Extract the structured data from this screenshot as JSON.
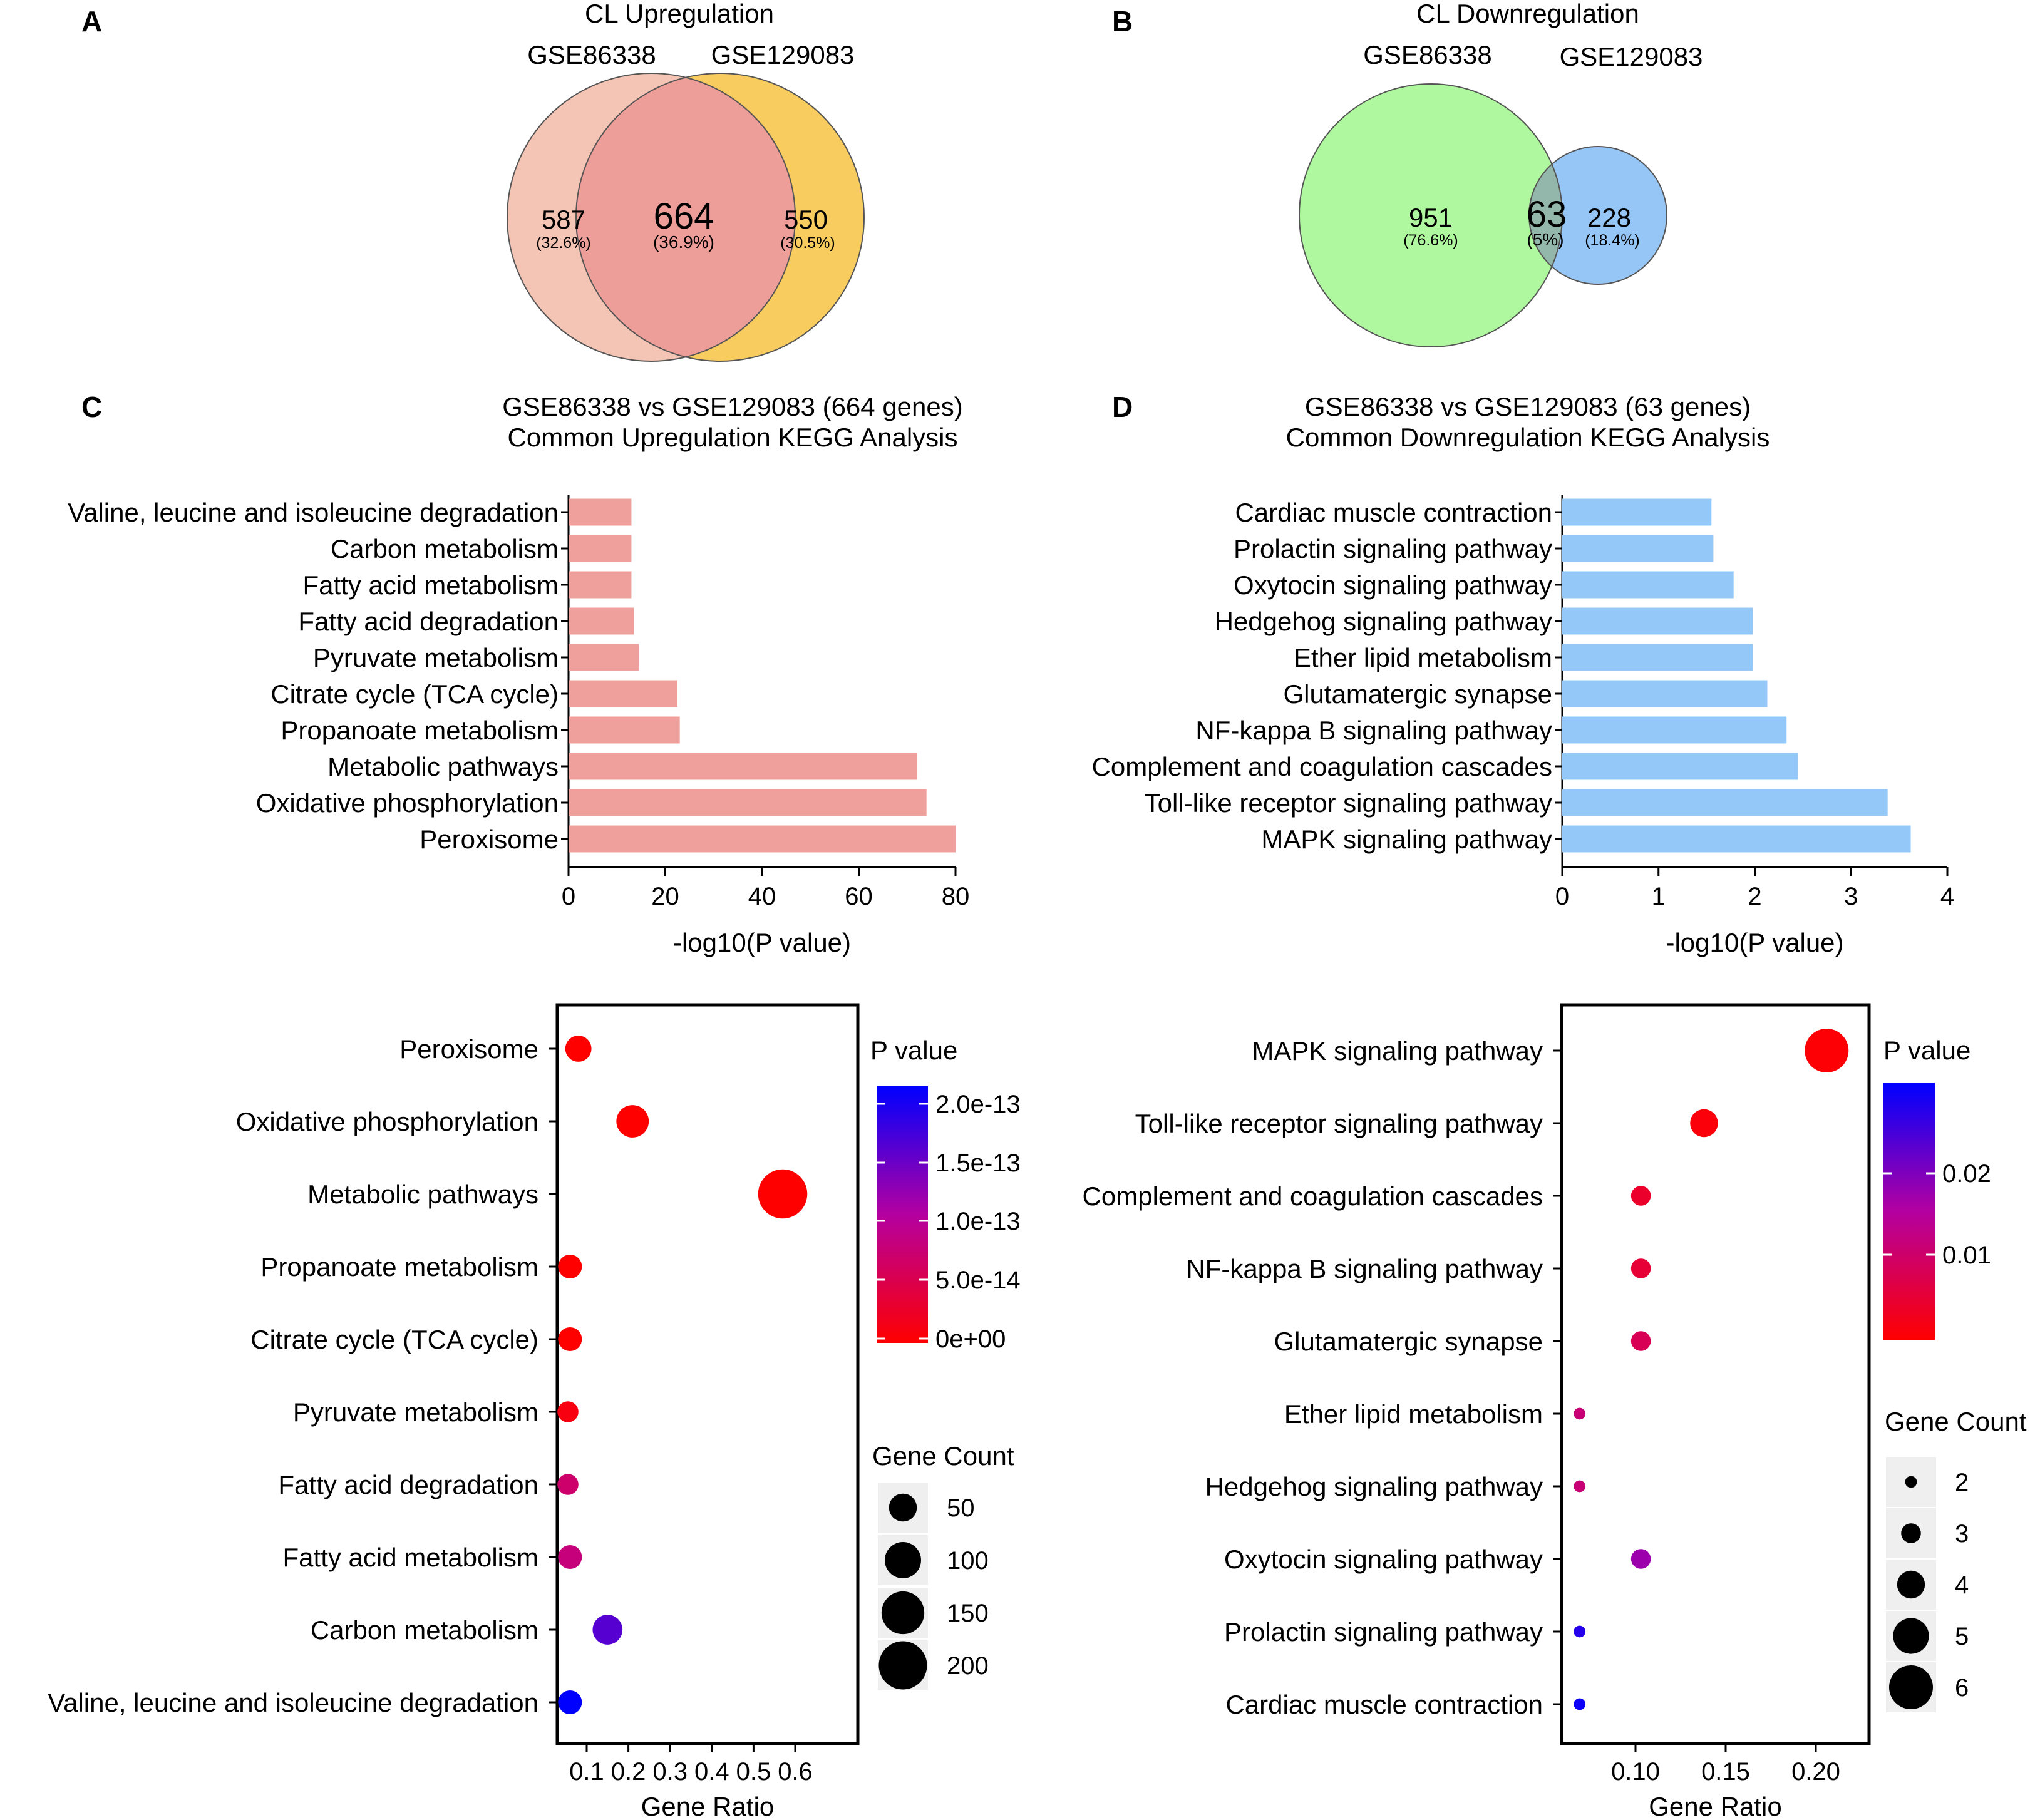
{
  "panels": {
    "A": {
      "letter": "A",
      "title": "CL Upregulation",
      "set_left": "GSE86338",
      "set_right": "GSE129083",
      "left_only": "587",
      "left_only_pct": "(32.6%)",
      "overlap": "664",
      "overlap_pct": "(36.9%)",
      "right_only": "550",
      "right_only_pct": "(30.5%)",
      "color_left": "#f4c4b4",
      "color_right": "#f8cc5e",
      "color_overlap": "#ee9e98"
    },
    "B": {
      "letter": "B",
      "title": "CL Downregulation",
      "set_left": "GSE86338",
      "set_right": "GSE129083",
      "left_only": "951",
      "left_only_pct": "(76.6%)",
      "overlap": "63",
      "overlap_pct": "(5%)",
      "right_only": "228",
      "right_only_pct": "(18.4%)",
      "color_left": "#b0f8a0",
      "color_right": "#96c6f6",
      "color_overlap": "#93b7aa"
    },
    "C": {
      "letter": "C",
      "title_line1": "GSE86338 vs GSE129083 (664 genes)",
      "title_line2": "Common Upregulation KEGG Analysis",
      "bar_color": "#f0a09c"
    },
    "D": {
      "letter": "D",
      "title_line1": "GSE86338 vs GSE129083 (63 genes)",
      "title_line2": "Common Downregulation KEGG Analysis",
      "bar_color": "#94c8f8"
    },
    "E": {
      "legend_pvalue_title": "P value",
      "legend_count_title": "Gene Count"
    },
    "F": {
      "legend_pvalue_title": "P value",
      "legend_count_title": "Gene Count"
    }
  },
  "chart_data": [
    {
      "id": "C",
      "type": "bar",
      "orientation": "horizontal",
      "categories": [
        "Valine, leucine and isoleucine degradation",
        "Carbon metabolism",
        "Fatty acid metabolism",
        "Fatty acid degradation",
        "Pyruvate metabolism",
        "Citrate cycle (TCA cycle)",
        "Propanoate metabolism",
        "Metabolic pathways",
        "Oxidative phosphorylation",
        "Peroxisome"
      ],
      "values": [
        13,
        13,
        13,
        13.5,
        14.5,
        22.5,
        23,
        72,
        74,
        80
      ],
      "xlabel": "-log10(P value)",
      "xlim": [
        0,
        80
      ],
      "xticks": [
        0,
        20,
        40,
        60,
        80
      ]
    },
    {
      "id": "D",
      "type": "bar",
      "orientation": "horizontal",
      "categories": [
        "Cardiac muscle contraction",
        "Prolactin signaling pathway",
        "Oxytocin signaling pathway",
        "Hedgehog signaling pathway",
        "Ether lipid metabolism",
        "Glutamatergic synapse",
        "NF-kappa B signaling pathway",
        "Complement and coagulation cascades",
        "Toll-like receptor signaling pathway",
        "MAPK signaling pathway"
      ],
      "values": [
        1.55,
        1.57,
        1.78,
        1.98,
        1.98,
        2.13,
        2.33,
        2.45,
        3.38,
        3.62
      ],
      "xlabel": "-log10(P value)",
      "xlim": [
        0,
        4
      ],
      "xticks": [
        0,
        1,
        2,
        3,
        4
      ]
    },
    {
      "id": "E",
      "type": "scatter",
      "categories": [
        "Peroxisome",
        "Oxidative phosphorylation",
        "Metabolic pathways",
        "Propanoate metabolism",
        "Citrate cycle (TCA cycle)",
        "Pyruvate metabolism",
        "Fatty acid degradation",
        "Fatty acid metabolism",
        "Carbon metabolism",
        "Valine, leucine and isoleucine degradation"
      ],
      "gene_ratio": [
        0.08,
        0.21,
        0.57,
        0.06,
        0.06,
        0.055,
        0.055,
        0.06,
        0.15,
        0.06
      ],
      "gene_count": [
        42,
        75,
        209,
        32,
        32,
        22,
        22,
        32,
        60,
        32
      ],
      "p_value": [
        0,
        0,
        0,
        0,
        0,
        1e-14,
        7e-14,
        8e-14,
        1.6e-13,
        2.1e-13
      ],
      "xlabel": "Gene Ratio",
      "xticks": [
        0.1,
        0.2,
        0.3,
        0.4,
        0.5,
        0.6
      ],
      "pvalue_ticks": [
        "2.0e-13",
        "1.5e-13",
        "1.0e-13",
        "5.0e-14",
        "0e+00"
      ],
      "count_legend": [
        50,
        100,
        150,
        200
      ]
    },
    {
      "id": "F",
      "type": "scatter",
      "categories": [
        "MAPK signaling pathway",
        "Toll-like receptor signaling pathway",
        "Complement and coagulation cascades",
        "NF-kappa B signaling pathway",
        "Glutamatergic synapse",
        "Ether lipid metabolism",
        "Hedgehog signaling pathway",
        "Oxytocin signaling pathway",
        "Prolactin signaling pathway",
        "Cardiac muscle contraction"
      ],
      "gene_ratio": [
        0.206,
        0.138,
        0.103,
        0.103,
        0.103,
        0.069,
        0.069,
        0.103,
        0.069,
        0.069
      ],
      "gene_count": [
        6,
        4,
        3,
        3,
        3,
        2,
        2,
        3,
        2,
        2
      ],
      "p_value": [
        0.0005,
        0.0009,
        0.004,
        0.005,
        0.008,
        0.011,
        0.011,
        0.017,
        0.027,
        0.029
      ],
      "xlabel": "Gene Ratio",
      "xticks": [
        0.1,
        0.15,
        0.2
      ],
      "xtick_labels": [
        "0.10",
        "0.15",
        "0.20"
      ],
      "pvalue_ticks": [
        "0.02",
        "0.01"
      ],
      "count_legend": [
        2,
        3,
        4,
        5,
        6
      ]
    }
  ]
}
